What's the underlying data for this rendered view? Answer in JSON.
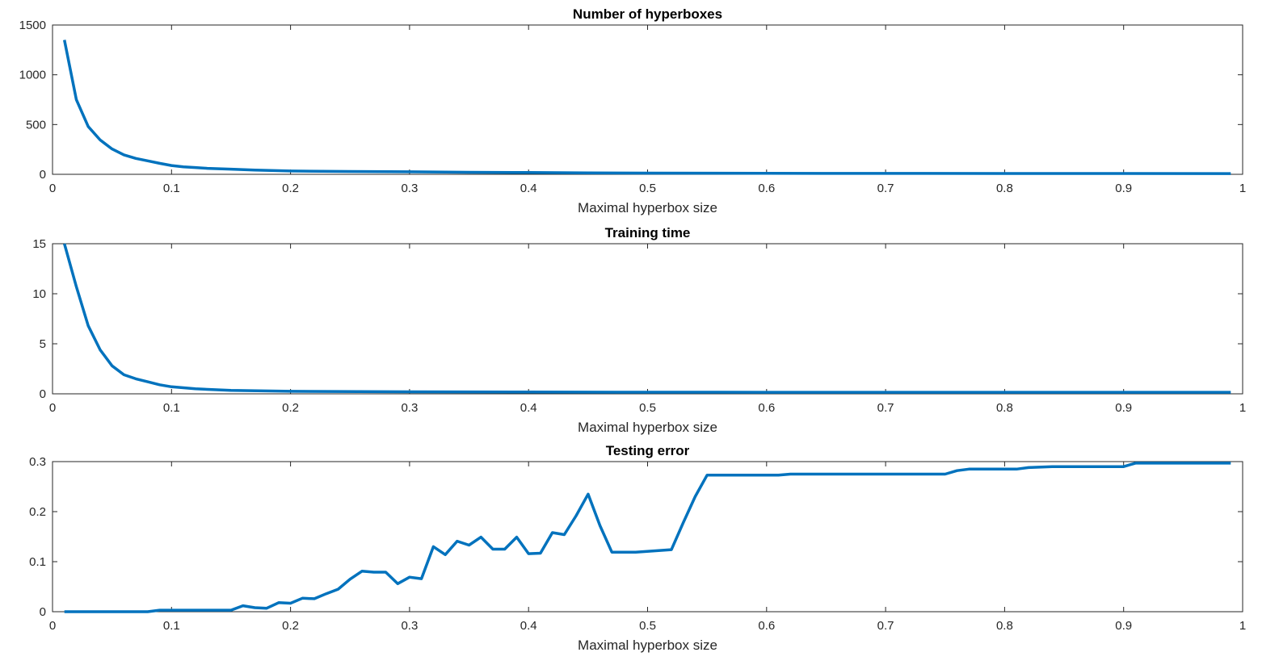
{
  "chart_data": [
    {
      "type": "line",
      "title": "Number of hyperboxes",
      "xlabel": "Maximal hyperbox size",
      "ylabel": "",
      "xlim": [
        0,
        1
      ],
      "ylim": [
        0,
        1500
      ],
      "x_ticks": [
        "0",
        "0.1",
        "0.2",
        "0.3",
        "0.4",
        "0.5",
        "0.6",
        "0.7",
        "0.8",
        "0.9",
        "1"
      ],
      "y_ticks": [
        {
          "v": 0,
          "t": "0"
        },
        {
          "v": 500,
          "t": "500"
        },
        {
          "v": 1000,
          "t": "1000"
        },
        {
          "v": 1500,
          "t": "1500"
        }
      ],
      "grid": false,
      "color": "#0072BD",
      "x": [
        0.01,
        0.02,
        0.03,
        0.04,
        0.05,
        0.06,
        0.07,
        0.08,
        0.09,
        0.1,
        0.11,
        0.12,
        0.13,
        0.15,
        0.17,
        0.2,
        0.25,
        0.3,
        0.35,
        0.4,
        0.45,
        0.5,
        0.6,
        0.7,
        0.8,
        0.9,
        0.99
      ],
      "y": [
        1350,
        750,
        480,
        345,
        255,
        195,
        160,
        135,
        110,
        88,
        75,
        68,
        60,
        52,
        42,
        33,
        28,
        25,
        20,
        18,
        15,
        12,
        10,
        9,
        8,
        8,
        7
      ]
    },
    {
      "type": "line",
      "title": "Training time",
      "xlabel": "Maximal hyperbox size",
      "ylabel": "",
      "xlim": [
        0,
        1
      ],
      "ylim": [
        0,
        15
      ],
      "x_ticks": [
        "0",
        "0.1",
        "0.2",
        "0.3",
        "0.4",
        "0.5",
        "0.6",
        "0.7",
        "0.8",
        "0.9",
        "1"
      ],
      "y_ticks": [
        {
          "v": 0,
          "t": "0"
        },
        {
          "v": 5,
          "t": "5"
        },
        {
          "v": 10,
          "t": "10"
        },
        {
          "v": 15,
          "t": "15"
        }
      ],
      "grid": false,
      "color": "#0072BD",
      "x": [
        0.01,
        0.02,
        0.03,
        0.04,
        0.05,
        0.06,
        0.07,
        0.08,
        0.09,
        0.1,
        0.12,
        0.15,
        0.2,
        0.3,
        0.4,
        0.5,
        0.6,
        0.7,
        0.8,
        0.9,
        0.99
      ],
      "y": [
        15.0,
        10.7,
        6.8,
        4.4,
        2.8,
        1.9,
        1.5,
        1.2,
        0.9,
        0.7,
        0.5,
        0.35,
        0.25,
        0.2,
        0.18,
        0.16,
        0.15,
        0.15,
        0.15,
        0.15,
        0.15
      ]
    },
    {
      "type": "line",
      "title": "Testing error",
      "xlabel": "Maximal hyperbox size",
      "ylabel": "",
      "xlim": [
        0,
        1
      ],
      "ylim": [
        0,
        0.3
      ],
      "x_ticks": [
        "0",
        "0.1",
        "0.2",
        "0.3",
        "0.4",
        "0.5",
        "0.6",
        "0.7",
        "0.8",
        "0.9",
        "1"
      ],
      "y_ticks": [
        {
          "v": 0,
          "t": "0"
        },
        {
          "v": 0.1,
          "t": "0.1"
        },
        {
          "v": 0.2,
          "t": "0.2"
        },
        {
          "v": 0.3,
          "t": "0.3"
        }
      ],
      "grid": false,
      "color": "#0072BD",
      "x": [
        0.01,
        0.08,
        0.09,
        0.15,
        0.16,
        0.17,
        0.18,
        0.19,
        0.2,
        0.21,
        0.22,
        0.23,
        0.24,
        0.25,
        0.26,
        0.27,
        0.28,
        0.29,
        0.3,
        0.31,
        0.32,
        0.33,
        0.34,
        0.35,
        0.36,
        0.37,
        0.38,
        0.39,
        0.4,
        0.41,
        0.42,
        0.43,
        0.44,
        0.45,
        0.46,
        0.47,
        0.49,
        0.52,
        0.53,
        0.54,
        0.55,
        0.61,
        0.62,
        0.75,
        0.76,
        0.77,
        0.81,
        0.82,
        0.84,
        0.9,
        0.91,
        0.99
      ],
      "y": [
        0.0,
        0.0,
        0.003,
        0.003,
        0.012,
        0.008,
        0.007,
        0.018,
        0.017,
        0.027,
        0.026,
        0.036,
        0.045,
        0.065,
        0.081,
        0.079,
        0.079,
        0.056,
        0.069,
        0.066,
        0.13,
        0.114,
        0.141,
        0.133,
        0.149,
        0.125,
        0.125,
        0.149,
        0.116,
        0.117,
        0.158,
        0.154,
        0.192,
        0.235,
        0.172,
        0.119,
        0.119,
        0.124,
        0.178,
        0.23,
        0.273,
        0.273,
        0.275,
        0.275,
        0.282,
        0.285,
        0.285,
        0.288,
        0.29,
        0.29,
        0.297,
        0.297
      ]
    }
  ]
}
